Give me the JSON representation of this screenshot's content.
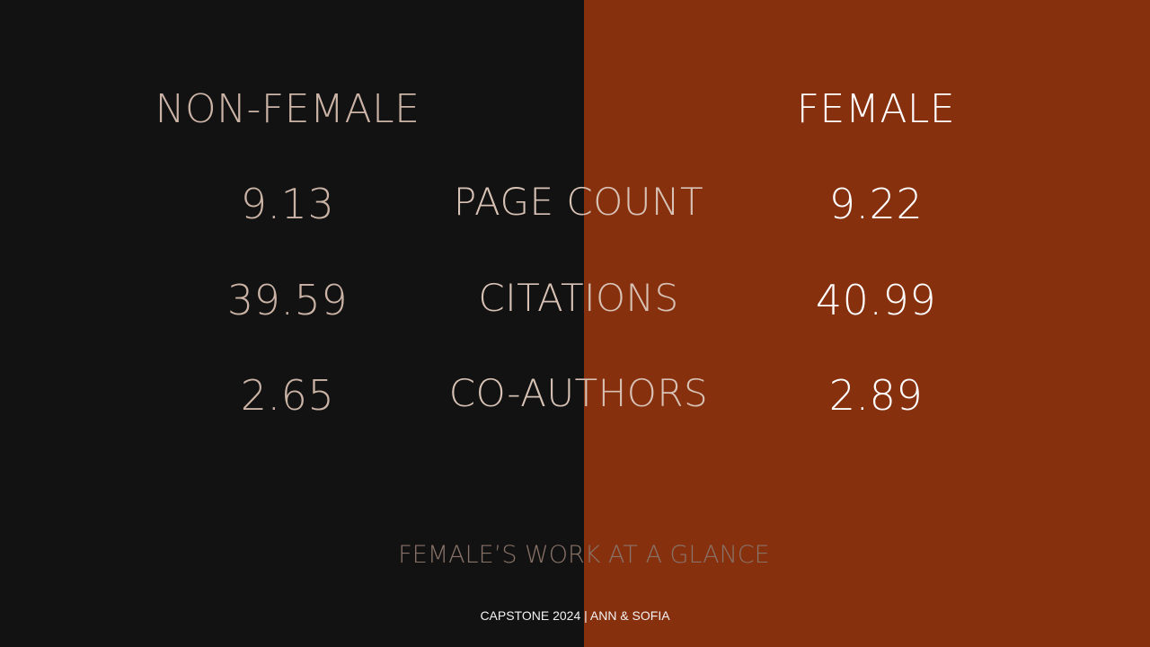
{
  "headings": {
    "left": "NON-FEMALE",
    "right": "FEMALE"
  },
  "rows": [
    {
      "label": "PAGE COUNT",
      "non_female": "9.13",
      "female": "9.22"
    },
    {
      "label": "CITATIONS",
      "non_female": "39.59",
      "female": "40.99"
    },
    {
      "label": "CO-AUTHORS",
      "non_female": "2.65",
      "female": "2.89"
    }
  ],
  "subtitle": "FEMALE’S WORK AT A GLANCE",
  "footer": "CAPSTONE 2024 | ANN & SOFIA",
  "colors": {
    "left_background": "#121212",
    "right_background": "#86300e"
  }
}
